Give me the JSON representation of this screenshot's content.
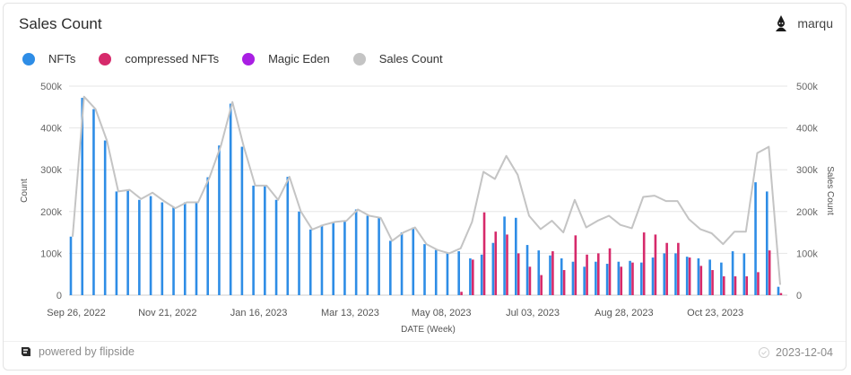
{
  "title": "Sales Count",
  "user": {
    "name": "marqu",
    "avatar_icon": "wizard-avatar-icon"
  },
  "footer": {
    "powered_by": "powered by flipside",
    "date": "2023-12-04",
    "logo_icon": "flipside-logo-icon",
    "check_icon": "check-circle-icon"
  },
  "colors": {
    "nfts": "#2e8de6",
    "compressed": "#d62a6b",
    "magic_eden": "#a91fe3",
    "sales_count": "#c4c4c4",
    "grid": "#e6e6e6"
  },
  "chart_data": {
    "type": "bar",
    "xlabel": "DATE (Week)",
    "ylabel": "Count",
    "ylabel_right": "Sales Count",
    "ylim": [
      0,
      500000
    ],
    "yticks": [
      "0",
      "100k",
      "200k",
      "300k",
      "400k",
      "500k"
    ],
    "yticks_right": [
      "0",
      "100k",
      "200k",
      "300k",
      "400k",
      "500k"
    ],
    "xtick_labels": [
      "Sep 26, 2022",
      "Nov 21, 2022",
      "Jan 16, 2023",
      "Mar 13, 2023",
      "May 08, 2023",
      "Jul 03, 2023",
      "Aug 28, 2023",
      "Oct 23, 2023"
    ],
    "xtick_indices": [
      0,
      8,
      16,
      24,
      32,
      40,
      48,
      56
    ],
    "legend_position": "top-left",
    "grid": true,
    "categories": [
      "2022-09-26",
      "2022-10-03",
      "2022-10-10",
      "2022-10-17",
      "2022-10-24",
      "2022-10-31",
      "2022-11-07",
      "2022-11-14",
      "2022-11-21",
      "2022-11-28",
      "2022-12-05",
      "2022-12-12",
      "2022-12-19",
      "2022-12-26",
      "2023-01-02",
      "2023-01-09",
      "2023-01-16",
      "2023-01-23",
      "2023-01-30",
      "2023-02-06",
      "2023-02-13",
      "2023-02-20",
      "2023-02-27",
      "2023-03-06",
      "2023-03-13",
      "2023-03-20",
      "2023-03-27",
      "2023-04-03",
      "2023-04-10",
      "2023-04-17",
      "2023-04-24",
      "2023-05-01",
      "2023-05-08",
      "2023-05-15",
      "2023-05-22",
      "2023-05-29",
      "2023-06-05",
      "2023-06-12",
      "2023-06-19",
      "2023-06-26",
      "2023-07-03",
      "2023-07-10",
      "2023-07-17",
      "2023-07-24",
      "2023-07-31",
      "2023-08-07",
      "2023-08-14",
      "2023-08-21",
      "2023-08-28",
      "2023-09-04",
      "2023-09-11",
      "2023-09-18",
      "2023-09-25",
      "2023-10-02",
      "2023-10-09",
      "2023-10-16",
      "2023-10-23",
      "2023-10-30",
      "2023-11-06",
      "2023-11-13",
      "2023-11-20",
      "2023-11-27",
      "2023-12-04"
    ],
    "series": [
      {
        "name": "NFTs",
        "type": "bar",
        "color": "#2e8de6",
        "values": [
          140000,
          472000,
          445000,
          370000,
          248000,
          250000,
          228000,
          237000,
          222000,
          210000,
          222000,
          222000,
          282000,
          358000,
          458000,
          355000,
          262000,
          262000,
          228000,
          283000,
          200000,
          157000,
          168000,
          175000,
          178000,
          205000,
          190000,
          185000,
          130000,
          150000,
          162000,
          122000,
          108000,
          100000,
          105000,
          88000,
          97000,
          125000,
          188000,
          185000,
          120000,
          107000,
          95000,
          88000,
          80000,
          68000,
          80000,
          75000,
          80000,
          82000,
          78000,
          90000,
          100000,
          100000,
          92000,
          88000,
          85000,
          78000,
          105000,
          100000,
          270000,
          248000,
          20000
        ]
      },
      {
        "name": "compressed NFTs",
        "type": "bar",
        "color": "#d62a6b",
        "values": [
          0,
          0,
          0,
          0,
          0,
          0,
          0,
          0,
          0,
          0,
          0,
          0,
          0,
          0,
          0,
          0,
          0,
          0,
          0,
          0,
          0,
          0,
          0,
          0,
          0,
          0,
          0,
          0,
          0,
          0,
          0,
          0,
          0,
          0,
          8000,
          85000,
          198000,
          152000,
          145000,
          100000,
          68000,
          48000,
          105000,
          60000,
          143000,
          97000,
          100000,
          112000,
          68000,
          78000,
          150000,
          145000,
          125000,
          125000,
          90000,
          70000,
          60000,
          45000,
          45000,
          45000,
          55000,
          107000,
          5000
        ]
      },
      {
        "name": "Magic Eden",
        "type": "bar",
        "color": "#a91fe3",
        "values": [
          0,
          0,
          0,
          0,
          0,
          0,
          0,
          0,
          0,
          0,
          0,
          0,
          0,
          0,
          0,
          0,
          0,
          0,
          0,
          0,
          0,
          0,
          0,
          0,
          0,
          0,
          0,
          0,
          0,
          0,
          0,
          0,
          0,
          0,
          0,
          0,
          0,
          0,
          0,
          0,
          0,
          0,
          0,
          0,
          0,
          0,
          0,
          0,
          0,
          0,
          0,
          0,
          0,
          0,
          0,
          0,
          0,
          0,
          0,
          0,
          0,
          0,
          0
        ]
      },
      {
        "name": "Sales Count",
        "type": "line",
        "color": "#c4c4c4",
        "values": [
          140000,
          475000,
          445000,
          370000,
          248000,
          252000,
          230000,
          245000,
          225000,
          208000,
          222000,
          222000,
          282000,
          358000,
          462000,
          355000,
          262000,
          262000,
          228000,
          283000,
          200000,
          157000,
          168000,
          175000,
          178000,
          205000,
          190000,
          185000,
          130000,
          150000,
          162000,
          122000,
          108000,
          100000,
          112000,
          175000,
          295000,
          278000,
          333000,
          288000,
          190000,
          158000,
          178000,
          150000,
          228000,
          162000,
          178000,
          190000,
          168000,
          160000,
          235000,
          238000,
          225000,
          225000,
          182000,
          158000,
          148000,
          122000,
          152000,
          152000,
          340000,
          355000,
          25000
        ]
      }
    ]
  }
}
